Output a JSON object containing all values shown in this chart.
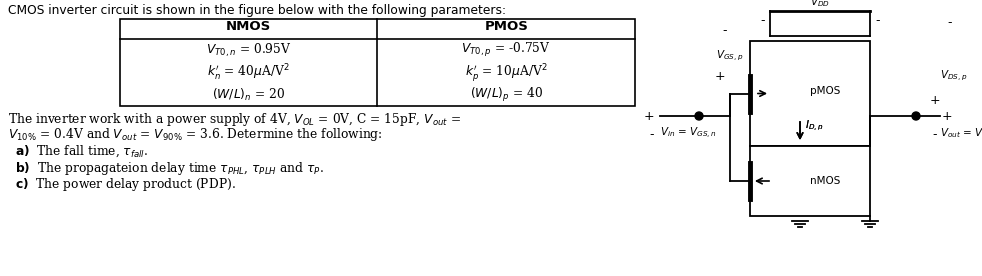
{
  "header": "CMOS inverter circuit is shown in the figure below with the following parameters:",
  "bg_color": "#ffffff",
  "text_color": "#000000",
  "nmos_data": [
    "V_{T0,n} = 0.95V",
    "k_n = 40uA/V2",
    "(W/L)_n = 20"
  ],
  "pmos_data": [
    "V_{T0,p} = -0.75V",
    "k_p = 10uA/V2",
    "(W/L)_p = 40"
  ]
}
